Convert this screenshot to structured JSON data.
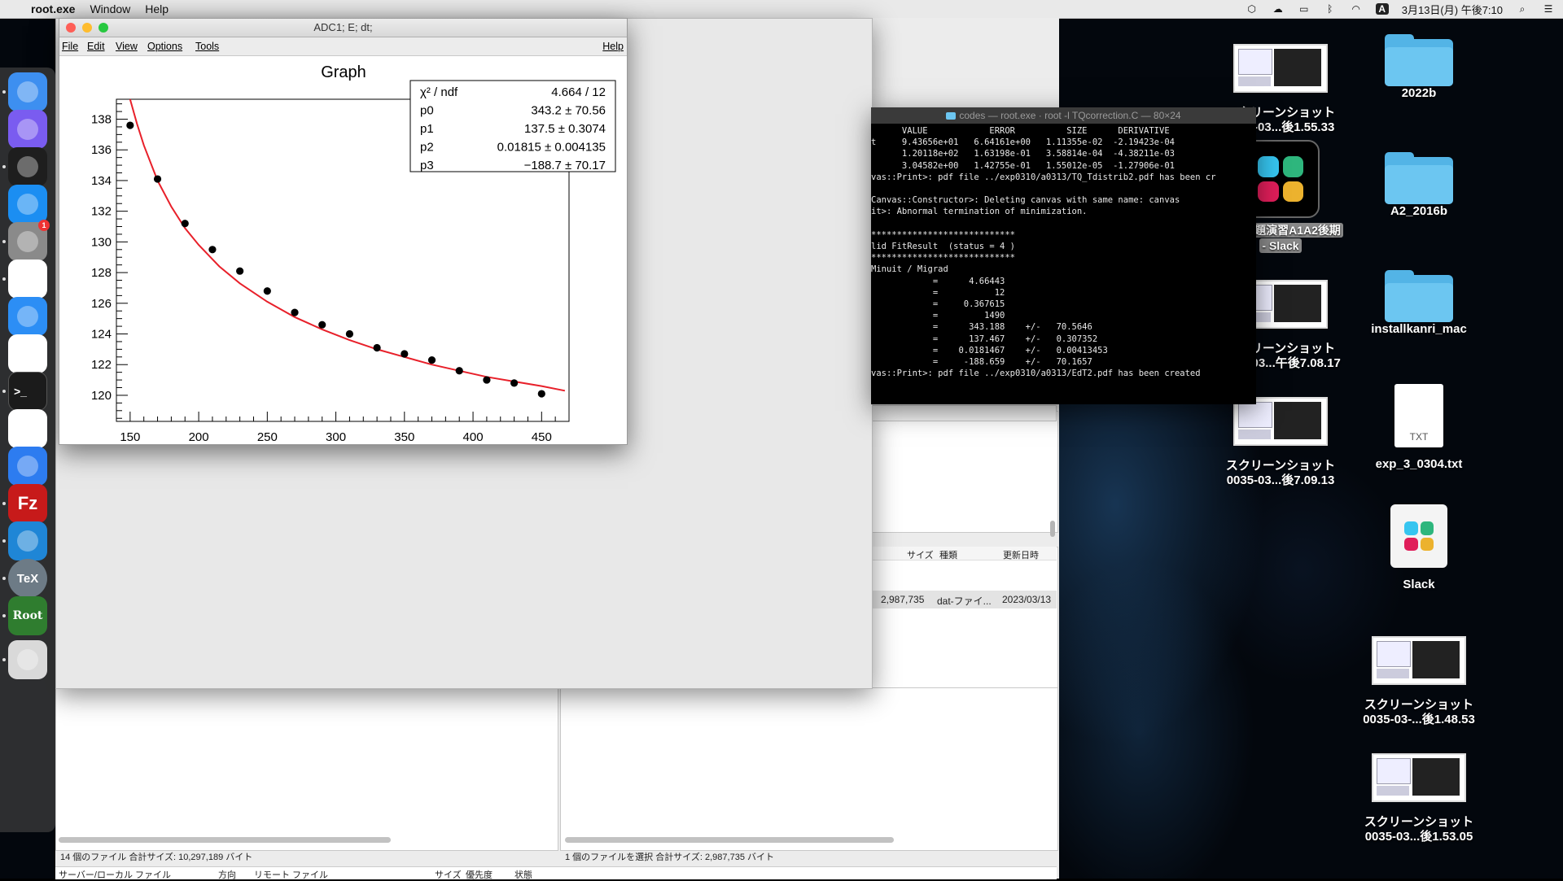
{
  "menubar": {
    "app_name": "root.exe",
    "items": [
      "Window",
      "Help"
    ],
    "datetime": "3月13日(月) 午後7:10",
    "input_indicator": "A"
  },
  "terminal": {
    "title": "codes — root.exe · root -l TQcorrection.C — 80×24",
    "lines": [
      "      VALUE            ERROR          SIZE      DERIVATIVE",
      "t     9.43656e+01   6.64161e+00   1.11355e-02  -2.19423e-04",
      "      1.20118e+02   1.63198e-01   3.58814e-04  -4.38211e-03",
      "      3.04582e+00   1.42755e-01   1.55012e-05  -1.27906e-01",
      "vas::Print>: pdf file ../exp0310/a0313/TQ_Tdistrib2.pdf has been cr",
      "",
      "Canvas::Constructor>: Deleting canvas with same name: canvas",
      "it>: Abnormal termination of minimization.",
      "",
      "****************************",
      "lid FitResult  (status = 4 )",
      "****************************",
      "Minuit / Migrad",
      "            =      4.66443",
      "            =           12",
      "            =     0.367615",
      "            =         1490",
      "            =      343.188    +/-   70.5646",
      "            =      137.467    +/-   0.307352",
      "            =    0.0181467    +/-   0.00413453",
      "            =     -188.659    +/-   70.1657",
      "vas::Print>: pdf file ../exp0310/a0313/EdT2.pdf has been created"
    ]
  },
  "canvas_window": {
    "title": "ADC1; E; dt;",
    "menu": [
      "File",
      "Edit",
      "View",
      "Options",
      "Tools"
    ],
    "help": "Help"
  },
  "stats": {
    "rows": [
      {
        "name": "χ² / ndf",
        "value": "4.664 / 12"
      },
      {
        "name": "p0",
        "value": "343.2 ± 70.56"
      },
      {
        "name": "p1",
        "value": "137.5 ± 0.3074"
      },
      {
        "name": "p2",
        "value": "0.01815 ± 0.004135"
      },
      {
        "name": "p3",
        "value": "−188.7 ± 70.17"
      }
    ]
  },
  "chart_data": {
    "type": "scatter",
    "title": "Graph",
    "xlabel": "",
    "ylabel": "",
    "xlim": [
      140,
      470
    ],
    "ylim": [
      118.3,
      139.3
    ],
    "xticks": [
      150,
      200,
      250,
      300,
      350,
      400,
      450
    ],
    "yticks": [
      120,
      122,
      124,
      126,
      128,
      130,
      132,
      134,
      136,
      138
    ],
    "x": [
      150,
      170,
      190,
      210,
      230,
      250,
      270,
      290,
      310,
      330,
      350,
      370,
      390,
      410,
      430,
      450
    ],
    "y": [
      137.6,
      134.1,
      131.2,
      129.5,
      128.1,
      126.8,
      125.4,
      124.6,
      124.0,
      123.1,
      122.7,
      122.3,
      121.6,
      121.0,
      120.8,
      120.1
    ],
    "fit": {
      "function": "p0/(x-p3)^... approx",
      "color": "#e8202a",
      "points_x": [
        150,
        155,
        160,
        170,
        180,
        190,
        200,
        215,
        230,
        250,
        270,
        290,
        310,
        330,
        350,
        370,
        390,
        410,
        430,
        450,
        467
      ],
      "points_y": [
        139.3,
        137.7,
        136.3,
        134.0,
        132.3,
        130.9,
        129.8,
        128.4,
        127.3,
        126.1,
        125.1,
        124.3,
        123.6,
        123.0,
        122.5,
        122.0,
        121.6,
        121.2,
        120.9,
        120.6,
        120.3
      ]
    },
    "markers_color": "#000000"
  },
  "filezilla": {
    "col_headers": [
      "サイズ",
      "種類",
      "更新日時"
    ],
    "row": {
      "size": "2,987,735",
      "type": "dat-ファイ...",
      "date": "2023/03/13"
    },
    "status_left": "14 個のファイル 合計サイズ: 10,297,189 バイト",
    "status_right": "1 個のファイルを選択 合計サイズ: 2,987,735 バイト",
    "queue_headers": [
      "サーバー/ローカル ファイル",
      "方向",
      "リモート ファイル",
      "サイズ",
      "優先度",
      "状態"
    ]
  },
  "desktop_icons": [
    {
      "label1": "スクリーンショット",
      "label2": "0035-03...後1.55.33",
      "kind": "thumb"
    },
    {
      "label1": "2022b",
      "label2": "",
      "kind": "folder"
    },
    {
      "label1": "a2 - 課題演習A1A2後期",
      "label2": "- Slack",
      "kind": "slack-selected"
    },
    {
      "label1": "A2_2016b",
      "label2": "",
      "kind": "folder"
    },
    {
      "label1": "スクリーンショット",
      "label2": "0035-03...午後7.08.17",
      "kind": "thumb"
    },
    {
      "label1": "installkanri_mac",
      "label2": "",
      "kind": "folder"
    },
    {
      "label1": "スクリーンショット",
      "label2": "0035-03...後7.09.13",
      "kind": "thumb"
    },
    {
      "label1": "exp_3_0304.txt",
      "label2": "",
      "kind": "txt",
      "badge": "TXT"
    },
    {
      "label1": "Slack",
      "label2": "",
      "kind": "app"
    },
    {
      "label1": "スクリーンショット",
      "label2": "0035-03-...後1.48.53",
      "kind": "thumb"
    },
    {
      "label1": "スクリーンショット",
      "label2": "0035-03...後1.53.05",
      "kind": "thumb"
    }
  ],
  "dock": [
    {
      "name": "Finder",
      "icon": "finder-icon",
      "color": "#3d8ff0"
    },
    {
      "name": "Siri",
      "icon": "siri-icon",
      "color": "#7a5cf0"
    },
    {
      "name": "Activity Monitor",
      "icon": "activity-monitor-icon",
      "color": "#1e1e1e"
    },
    {
      "name": "App Store",
      "icon": "app-store-icon",
      "color": "#1b8ef2"
    },
    {
      "name": "System Preferences",
      "icon": "system-preferences-icon",
      "color": "#8a8a8a",
      "badge": "1"
    },
    {
      "name": "Chrome",
      "icon": "chrome-icon",
      "color": "#ffffff"
    },
    {
      "name": "Safari",
      "icon": "safari-icon",
      "color": "#2c8ef5"
    },
    {
      "name": "Photos",
      "icon": "photos-icon",
      "color": "#ffffff"
    },
    {
      "name": "Terminal",
      "icon": "terminal-icon",
      "color": "#1b1b1b",
      "glyph": ">_"
    },
    {
      "name": "Numbers",
      "icon": "numbers-icon",
      "color": "#ffffff"
    },
    {
      "name": "Keynote",
      "icon": "keynote-icon",
      "color": "#2d7cf0"
    },
    {
      "name": "FileZilla",
      "icon": "filezilla-icon",
      "color": "#c71a1a",
      "glyph": "Fz"
    },
    {
      "name": "VS Code",
      "icon": "vscode-icon",
      "color": "#1f86d6"
    },
    {
      "name": "TeXShop",
      "icon": "tex-icon",
      "color": "#6d7b86",
      "glyph": "TeX"
    },
    {
      "name": "ROOT",
      "icon": "root-icon",
      "color": "#2f7d2f",
      "glyph": "Root"
    },
    {
      "name": "Trash",
      "icon": "trash-icon",
      "color": "#d9d9d9"
    }
  ]
}
